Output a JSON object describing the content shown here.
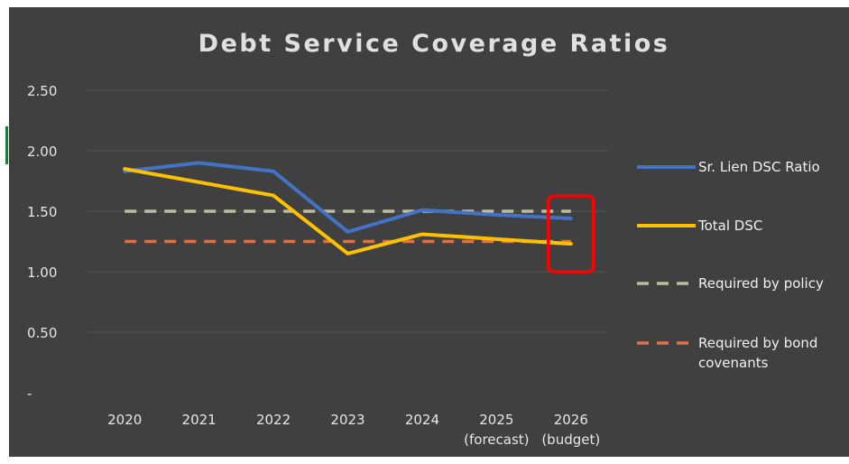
{
  "chart_data": {
    "type": "line",
    "title": "Debt Service Coverage Ratios",
    "categories": [
      [
        "2020"
      ],
      [
        "2021"
      ],
      [
        "2022"
      ],
      [
        "2023"
      ],
      [
        "2024"
      ],
      [
        "2025",
        "(forecast)"
      ],
      [
        "2026",
        "(budget)"
      ]
    ],
    "y_ticks": [
      {
        "value": 0,
        "label": "-"
      },
      {
        "value": 0.5,
        "label": "0.50"
      },
      {
        "value": 1.0,
        "label": "1.00"
      },
      {
        "value": 1.5,
        "label": "1.50"
      },
      {
        "value": 2.0,
        "label": "2.00"
      },
      {
        "value": 2.5,
        "label": "2.50"
      }
    ],
    "ylim": [
      0,
      2.5
    ],
    "grid": true,
    "legend_position": "right",
    "series": [
      {
        "name": "Sr. Lien DSC Ratio",
        "color": "#4472c4",
        "style": "solid",
        "values": [
          1.83,
          1.9,
          1.83,
          1.33,
          1.51,
          1.47,
          1.44
        ]
      },
      {
        "name": "Total DSC",
        "color": "#ffc000",
        "style": "solid",
        "values": [
          1.85,
          1.74,
          1.63,
          1.15,
          1.31,
          1.27,
          1.23
        ]
      },
      {
        "name": "Required by policy",
        "color": "#bcbca0",
        "style": "dashed",
        "values": [
          1.5,
          1.5,
          1.5,
          1.5,
          1.5,
          1.5,
          1.5
        ]
      },
      {
        "name": "Required by bond covenants",
        "color": "#d9744a",
        "style": "dashed",
        "values": [
          1.25,
          1.25,
          1.25,
          1.25,
          1.25,
          1.25,
          1.25
        ]
      }
    ],
    "legend_lines": [
      [
        "Sr. Lien DSC Ratio"
      ],
      [
        "Total DSC"
      ],
      [
        "Required by policy"
      ],
      [
        "Required by bond",
        "covenants"
      ]
    ],
    "highlight": {
      "category_index": 6,
      "color": "#ff0000"
    }
  }
}
